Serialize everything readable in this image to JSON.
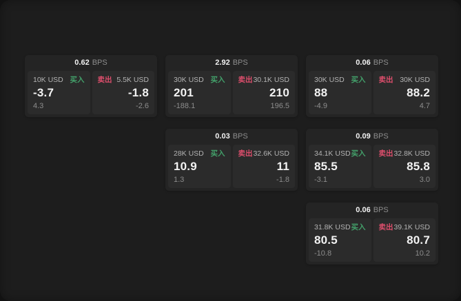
{
  "labels": {
    "bps_unit": "BPS",
    "buy_side": "买入",
    "sell_side": "卖出"
  },
  "colors": {
    "background": "#121212",
    "surface": "#1d1d1d",
    "card": "#242424",
    "panel": "#2b2b2b",
    "buy": "#43a06a",
    "sell": "#dd4e6c",
    "text_primary": "#f2f2f2",
    "text_secondary": "#b3b3b3",
    "text_muted": "#8d8d8d"
  },
  "cards": [
    {
      "bps": "0.62",
      "grid": {
        "col": 1,
        "row": 1
      },
      "buy": {
        "size": "10K USD",
        "price": "-3.7",
        "change": "4.3"
      },
      "sell": {
        "size": "5.5K USD",
        "price": "-1.8",
        "change": "-2.6"
      }
    },
    {
      "bps": "2.92",
      "grid": {
        "col": 2,
        "row": 1
      },
      "buy": {
        "size": "30K USD",
        "price": "201",
        "change": "-188.1"
      },
      "sell": {
        "size": "30.1K USD",
        "price": "210",
        "change": "196.5"
      }
    },
    {
      "bps": "0.06",
      "grid": {
        "col": 3,
        "row": 1
      },
      "buy": {
        "size": "30K USD",
        "price": "88",
        "change": "-4.9"
      },
      "sell": {
        "size": "30K USD",
        "price": "88.2",
        "change": "4.7"
      }
    },
    {
      "bps": "0.03",
      "grid": {
        "col": 2,
        "row": 2
      },
      "buy": {
        "size": "28K USD",
        "price": "10.9",
        "change": "1.3"
      },
      "sell": {
        "size": "32.6K USD",
        "price": "11",
        "change": "-1.8"
      }
    },
    {
      "bps": "0.09",
      "grid": {
        "col": 3,
        "row": 2
      },
      "buy": {
        "size": "34.1K USD",
        "price": "85.5",
        "change": "-3.1"
      },
      "sell": {
        "size": "32.8K USD",
        "price": "85.8",
        "change": "3.0"
      }
    },
    {
      "bps": "0.06",
      "grid": {
        "col": 3,
        "row": 3
      },
      "buy": {
        "size": "31.8K USD",
        "price": "80.5",
        "change": "-10.8"
      },
      "sell": {
        "size": "39.1K USD",
        "price": "80.7",
        "change": "10.2"
      }
    }
  ]
}
